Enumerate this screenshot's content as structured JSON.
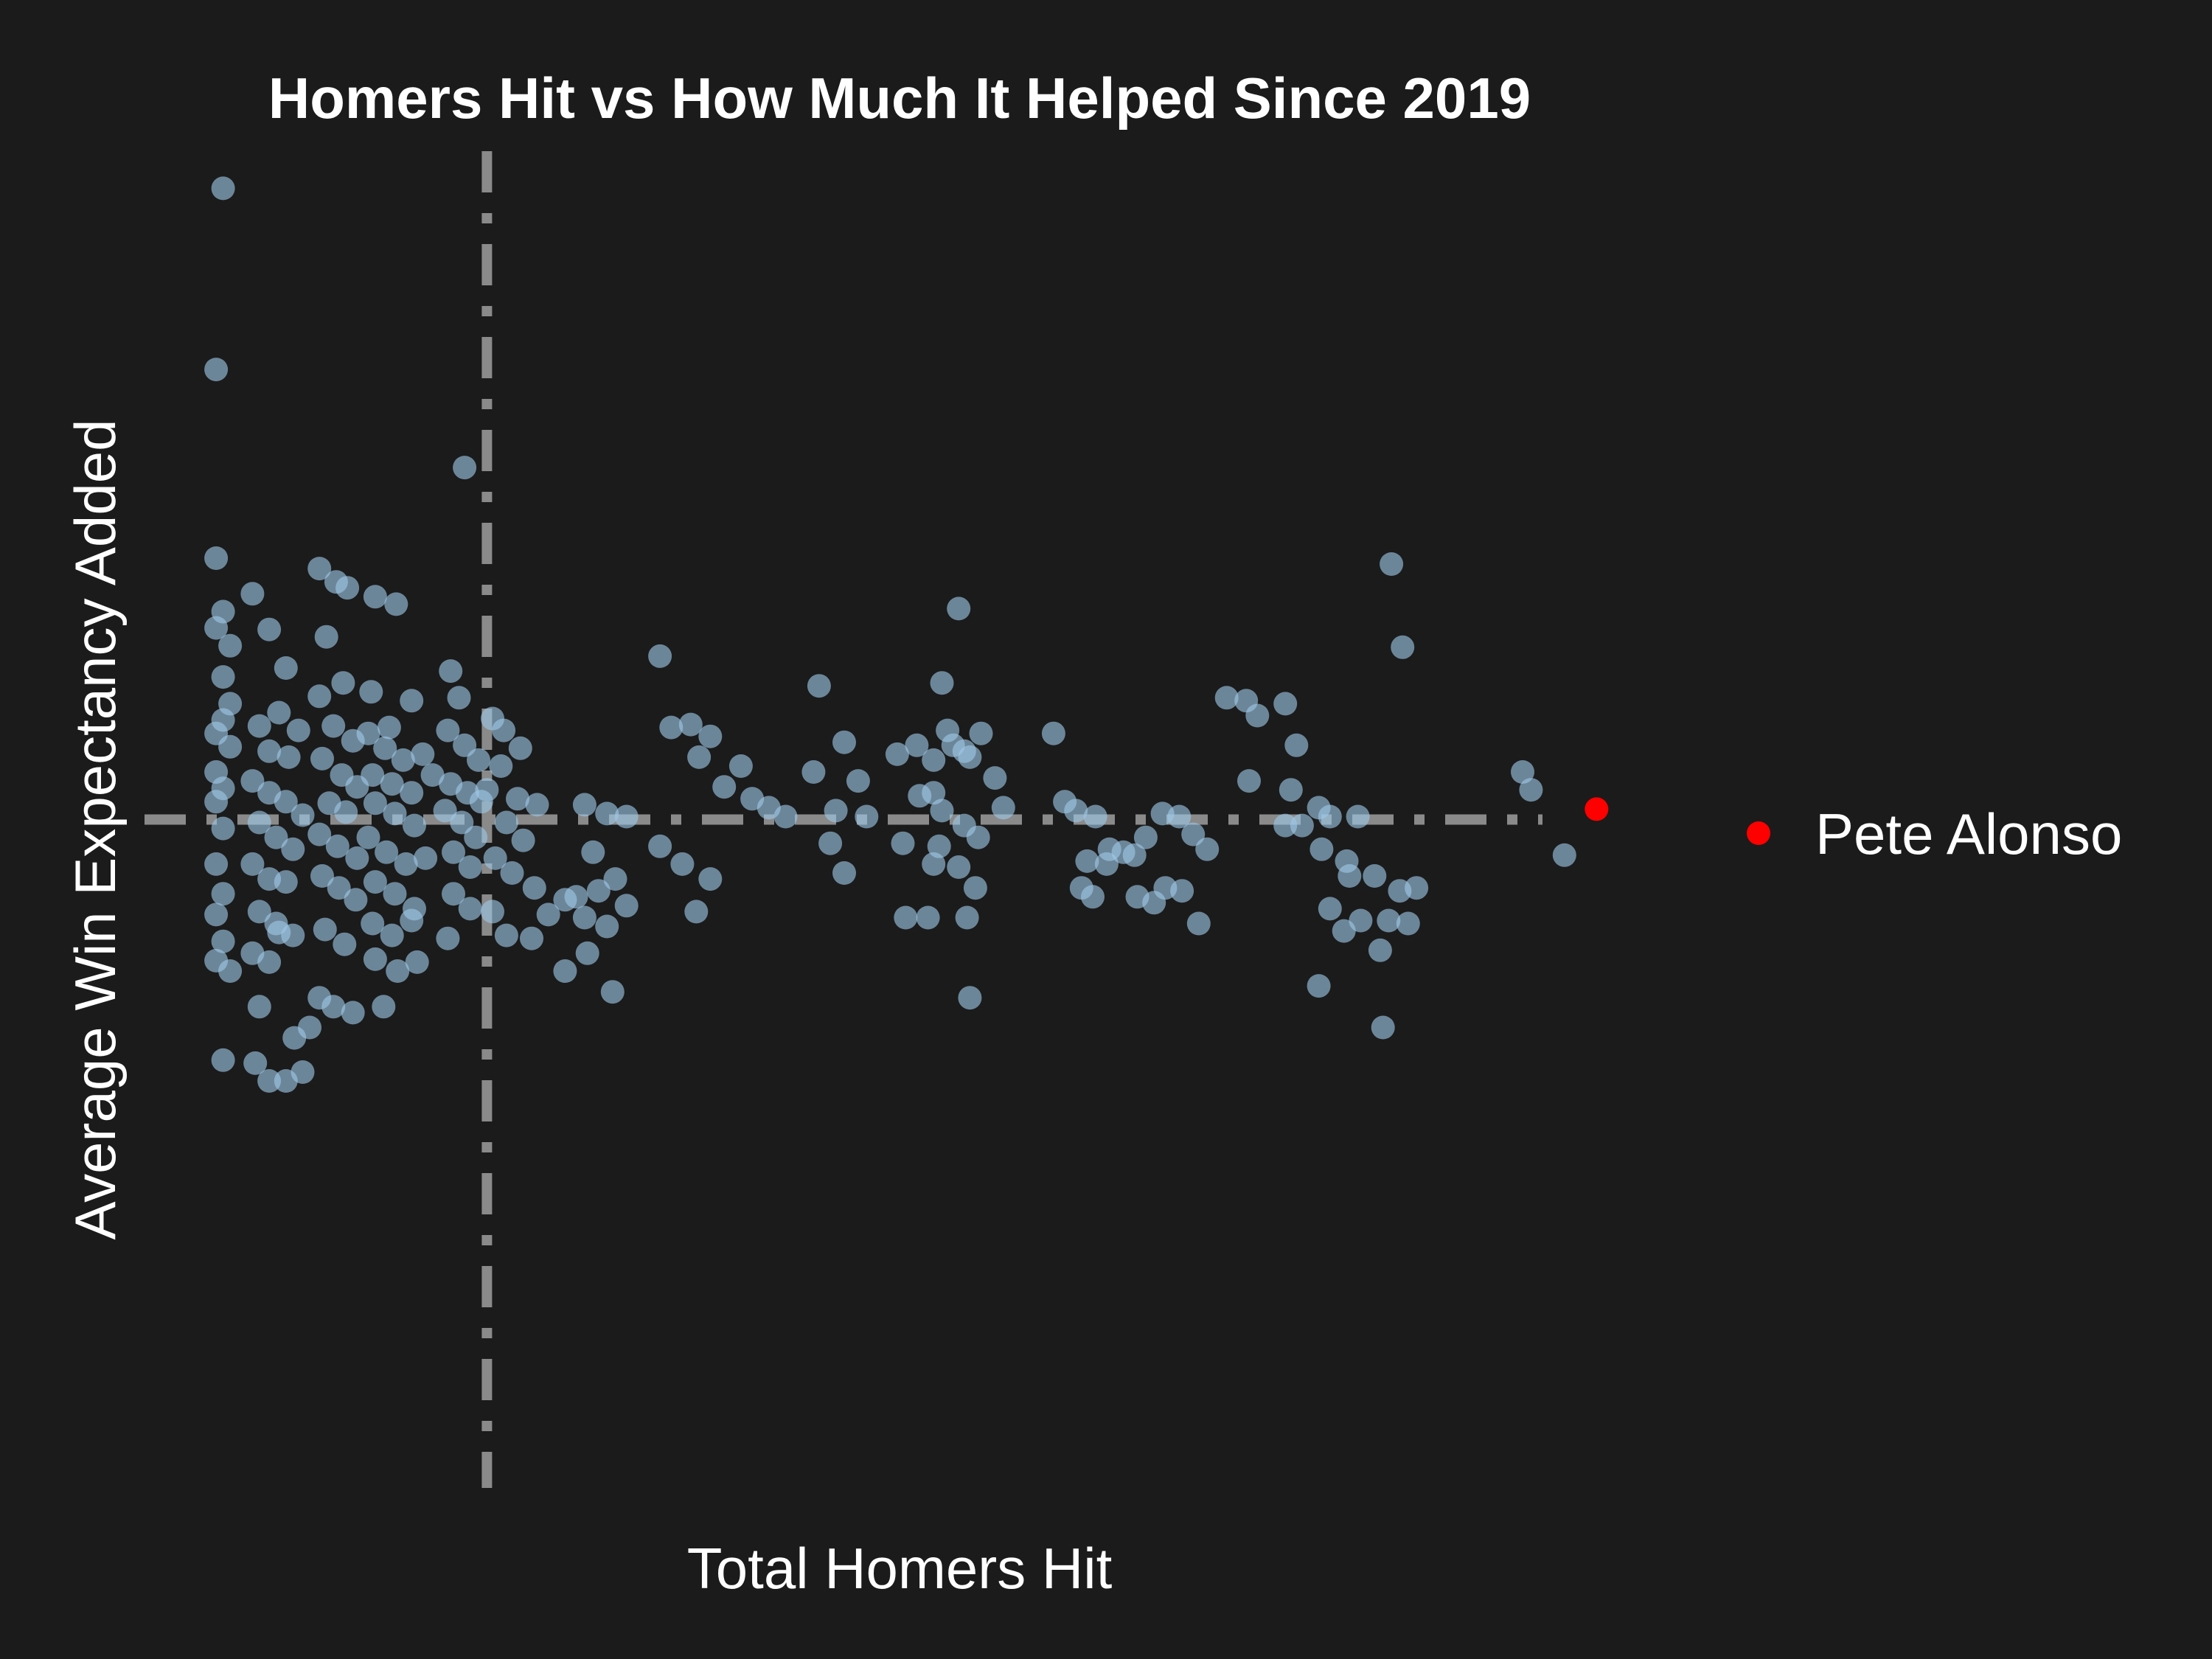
{
  "chart_data": {
    "type": "scatter",
    "title": "Homers Hit vs How Much It Helped Since 2019",
    "xlabel": "Total Homers Hit",
    "ylabel": "Average Win Expectancy Added",
    "x_ticks_shown": false,
    "y_ticks_shown": false,
    "grid": false,
    "legend": {
      "position": "right",
      "entries": [
        {
          "label": "Pete Alonso",
          "color": "#ff0000"
        }
      ]
    },
    "reference_lines": {
      "x_mean": 23.0,
      "y_mean": 0.0
    },
    "xlim": [
      0,
      100
    ],
    "ylim": [
      -0.45,
      0.45
    ],
    "colors": {
      "background": "#1b1b1b",
      "points": "#9ec8e6",
      "highlight": "#ff0000",
      "ref_lines": "#8a8a8a",
      "text": "#ffffff"
    },
    "series": [
      {
        "name": "Pete Alonso",
        "color": "#ff0000",
        "points": [
          [
            102.5,
            0.007
          ]
        ]
      },
      {
        "color": "#9ec8e6",
        "points": [
          [
            4.1,
            0.425
          ],
          [
            3.6,
            0.303
          ],
          [
            21.4,
            0.237
          ],
          [
            3.6,
            0.176
          ],
          [
            3.6,
            0.129
          ],
          [
            4.1,
            0.14
          ],
          [
            4.6,
            0.117
          ],
          [
            4.1,
            0.096
          ],
          [
            4.6,
            0.078
          ],
          [
            4.1,
            0.067
          ],
          [
            3.6,
            0.058
          ],
          [
            4.6,
            0.049
          ],
          [
            3.6,
            0.032
          ],
          [
            4.1,
            0.021
          ],
          [
            3.6,
            0.012
          ],
          [
            4.1,
            -0.006
          ],
          [
            3.6,
            -0.03
          ],
          [
            4.1,
            -0.05
          ],
          [
            3.6,
            -0.064
          ],
          [
            4.1,
            -0.082
          ],
          [
            3.6,
            -0.095
          ],
          [
            4.6,
            -0.102
          ],
          [
            4.1,
            -0.162
          ],
          [
            6.2,
            0.152
          ],
          [
            7.4,
            0.128
          ],
          [
            8.6,
            0.102
          ],
          [
            6.7,
            0.063
          ],
          [
            8.1,
            0.072
          ],
          [
            9.5,
            0.06
          ],
          [
            7.4,
            0.046
          ],
          [
            8.8,
            0.042
          ],
          [
            6.2,
            0.026
          ],
          [
            7.4,
            0.018
          ],
          [
            8.6,
            0.012
          ],
          [
            9.8,
            0.003
          ],
          [
            6.7,
            -0.002
          ],
          [
            7.9,
            -0.012
          ],
          [
            9.1,
            -0.02
          ],
          [
            6.2,
            -0.03
          ],
          [
            7.4,
            -0.04
          ],
          [
            8.6,
            -0.042
          ],
          [
            6.7,
            -0.062
          ],
          [
            7.9,
            -0.07
          ],
          [
            9.1,
            -0.078
          ],
          [
            6.2,
            -0.09
          ],
          [
            7.4,
            -0.096
          ],
          [
            8.1,
            -0.076
          ],
          [
            6.7,
            -0.126
          ],
          [
            6.4,
            -0.164
          ],
          [
            7.4,
            -0.176
          ],
          [
            8.6,
            -0.176
          ],
          [
            9.8,
            -0.17
          ],
          [
            9.2,
            -0.147
          ],
          [
            10.3,
            -0.14
          ],
          [
            11.0,
            0.169
          ],
          [
            12.2,
            0.16
          ],
          [
            13.0,
            0.156
          ],
          [
            11.5,
            0.123
          ],
          [
            12.7,
            0.092
          ],
          [
            11.0,
            0.083
          ],
          [
            12.0,
            0.063
          ],
          [
            13.4,
            0.053
          ],
          [
            11.2,
            0.041
          ],
          [
            12.6,
            0.03
          ],
          [
            13.7,
            0.022
          ],
          [
            11.7,
            0.011
          ],
          [
            12.9,
            0.005
          ],
          [
            11.0,
            -0.01
          ],
          [
            12.3,
            -0.018
          ],
          [
            13.7,
            -0.026
          ],
          [
            11.2,
            -0.038
          ],
          [
            12.4,
            -0.046
          ],
          [
            13.6,
            -0.054
          ],
          [
            11.4,
            -0.074
          ],
          [
            12.8,
            -0.084
          ],
          [
            11.0,
            -0.12
          ],
          [
            12.0,
            -0.126
          ],
          [
            13.4,
            -0.13
          ],
          [
            15.0,
            0.15
          ],
          [
            16.5,
            0.145
          ],
          [
            14.7,
            0.086
          ],
          [
            16.0,
            0.062
          ],
          [
            17.6,
            0.08
          ],
          [
            14.5,
            0.058
          ],
          [
            15.7,
            0.048
          ],
          [
            17.0,
            0.04
          ],
          [
            18.4,
            0.044
          ],
          [
            14.8,
            0.03
          ],
          [
            16.2,
            0.024
          ],
          [
            17.6,
            0.018
          ],
          [
            19.1,
            0.03
          ],
          [
            15.0,
            0.011
          ],
          [
            16.4,
            0.004
          ],
          [
            17.8,
            -0.004
          ],
          [
            14.5,
            -0.012
          ],
          [
            15.8,
            -0.022
          ],
          [
            17.2,
            -0.03
          ],
          [
            18.6,
            -0.026
          ],
          [
            15.0,
            -0.042
          ],
          [
            16.4,
            -0.05
          ],
          [
            17.8,
            -0.06
          ],
          [
            14.8,
            -0.07
          ],
          [
            16.2,
            -0.078
          ],
          [
            17.6,
            -0.068
          ],
          [
            15.0,
            -0.094
          ],
          [
            16.6,
            -0.102
          ],
          [
            18.0,
            -0.096
          ],
          [
            15.6,
            -0.126
          ],
          [
            20.4,
            0.1
          ],
          [
            21.0,
            0.082
          ],
          [
            20.2,
            0.06
          ],
          [
            21.4,
            0.05
          ],
          [
            22.4,
            0.04
          ],
          [
            20.4,
            0.024
          ],
          [
            21.6,
            0.018
          ],
          [
            22.6,
            0.012
          ],
          [
            20.0,
            0.006
          ],
          [
            21.2,
            -0.002
          ],
          [
            22.2,
            -0.012
          ],
          [
            20.6,
            -0.022
          ],
          [
            21.8,
            -0.032
          ],
          [
            20.6,
            -0.05
          ],
          [
            21.8,
            -0.06
          ],
          [
            20.2,
            -0.08
          ],
          [
            23.4,
            0.068
          ],
          [
            24.2,
            0.06
          ],
          [
            25.4,
            0.048
          ],
          [
            24.0,
            0.036
          ],
          [
            23.0,
            0.02
          ],
          [
            25.2,
            0.014
          ],
          [
            26.6,
            0.01
          ],
          [
            24.4,
            -0.002
          ],
          [
            25.6,
            -0.014
          ],
          [
            23.6,
            -0.026
          ],
          [
            24.8,
            -0.036
          ],
          [
            26.4,
            -0.046
          ],
          [
            23.4,
            -0.062
          ],
          [
            24.4,
            -0.078
          ],
          [
            26.2,
            -0.08
          ],
          [
            27.4,
            -0.064
          ],
          [
            28.6,
            -0.054
          ],
          [
            30.0,
            0.01
          ],
          [
            31.6,
            0.004
          ],
          [
            33.0,
            0.002
          ],
          [
            30.6,
            -0.022
          ],
          [
            32.2,
            -0.04
          ],
          [
            29.4,
            -0.052
          ],
          [
            31.0,
            -0.048
          ],
          [
            33.0,
            -0.058
          ],
          [
            30.0,
            -0.066
          ],
          [
            31.6,
            -0.072
          ],
          [
            30.2,
            -0.09
          ],
          [
            28.6,
            -0.102
          ],
          [
            32.0,
            -0.116
          ],
          [
            35.4,
            0.11
          ],
          [
            37.6,
            0.064
          ],
          [
            36.2,
            0.062
          ],
          [
            39.0,
            0.056
          ],
          [
            38.2,
            0.042
          ],
          [
            41.2,
            0.036
          ],
          [
            40.0,
            0.022
          ],
          [
            42.0,
            0.014
          ],
          [
            43.2,
            0.008
          ],
          [
            44.4,
            0.002
          ],
          [
            35.4,
            -0.018
          ],
          [
            37.0,
            -0.03
          ],
          [
            39.0,
            -0.04
          ],
          [
            38.0,
            -0.062
          ],
          [
            46.8,
            0.09
          ],
          [
            48.6,
            0.052
          ],
          [
            46.4,
            0.032
          ],
          [
            49.6,
            0.026
          ],
          [
            48.0,
            0.006
          ],
          [
            50.2,
            0.002
          ],
          [
            47.6,
            -0.016
          ],
          [
            48.6,
            -0.036
          ],
          [
            52.4,
            0.044
          ],
          [
            53.8,
            0.05
          ],
          [
            55.0,
            0.04
          ],
          [
            56.4,
            0.05
          ],
          [
            54.0,
            0.016
          ],
          [
            55.6,
            0.006
          ],
          [
            57.2,
            -0.004
          ],
          [
            58.2,
            -0.012
          ],
          [
            52.8,
            -0.016
          ],
          [
            55.0,
            -0.03
          ],
          [
            56.8,
            -0.032
          ],
          [
            58.0,
            -0.046
          ],
          [
            53.0,
            -0.066
          ],
          [
            54.6,
            -0.066
          ],
          [
            57.4,
            -0.066
          ],
          [
            57.6,
            -0.12
          ],
          [
            56.8,
            0.142
          ],
          [
            55.6,
            0.092
          ],
          [
            57.2,
            0.046
          ],
          [
            55.0,
            0.018
          ],
          [
            56.0,
            0.06
          ],
          [
            57.6,
            0.042
          ],
          [
            58.4,
            0.058
          ],
          [
            59.4,
            0.028
          ],
          [
            60.0,
            0.008
          ],
          [
            55.4,
            -0.018
          ],
          [
            63.6,
            0.058
          ],
          [
            64.4,
            0.012
          ],
          [
            66.6,
            0.002
          ],
          [
            65.2,
            0.006
          ],
          [
            67.6,
            -0.02
          ],
          [
            68.6,
            -0.022
          ],
          [
            69.4,
            -0.024
          ],
          [
            70.2,
            -0.012
          ],
          [
            71.4,
            0.004
          ],
          [
            72.6,
            0.002
          ],
          [
            73.6,
            -0.01
          ],
          [
            74.6,
            -0.02
          ],
          [
            66.0,
            -0.028
          ],
          [
            67.4,
            -0.03
          ],
          [
            71.6,
            -0.046
          ],
          [
            72.8,
            -0.048
          ],
          [
            69.6,
            -0.052
          ],
          [
            70.8,
            -0.056
          ],
          [
            65.6,
            -0.046
          ],
          [
            66.4,
            -0.052
          ],
          [
            74.0,
            -0.07
          ],
          [
            76.0,
            0.082
          ],
          [
            77.4,
            0.08
          ],
          [
            78.2,
            0.07
          ],
          [
            80.2,
            0.078
          ],
          [
            77.6,
            0.026
          ],
          [
            80.6,
            0.02
          ],
          [
            81.0,
            0.05
          ],
          [
            82.6,
            0.008
          ],
          [
            83.4,
            0.002
          ],
          [
            85.4,
            0.002
          ],
          [
            80.2,
            -0.004
          ],
          [
            81.4,
            -0.004
          ],
          [
            82.8,
            -0.02
          ],
          [
            84.6,
            -0.028
          ],
          [
            84.8,
            -0.038
          ],
          [
            86.6,
            -0.038
          ],
          [
            88.4,
            -0.048
          ],
          [
            89.6,
            -0.046
          ],
          [
            83.4,
            -0.06
          ],
          [
            85.6,
            -0.068
          ],
          [
            87.6,
            -0.068
          ],
          [
            89.0,
            -0.07
          ],
          [
            84.4,
            -0.075
          ],
          [
            87.0,
            -0.088
          ],
          [
            87.8,
            0.172
          ],
          [
            88.6,
            0.116
          ],
          [
            87.2,
            -0.14
          ],
          [
            82.6,
            -0.112
          ],
          [
            97.2,
            0.032
          ],
          [
            97.8,
            0.02
          ],
          [
            100.2,
            -0.024
          ]
        ]
      }
    ]
  }
}
